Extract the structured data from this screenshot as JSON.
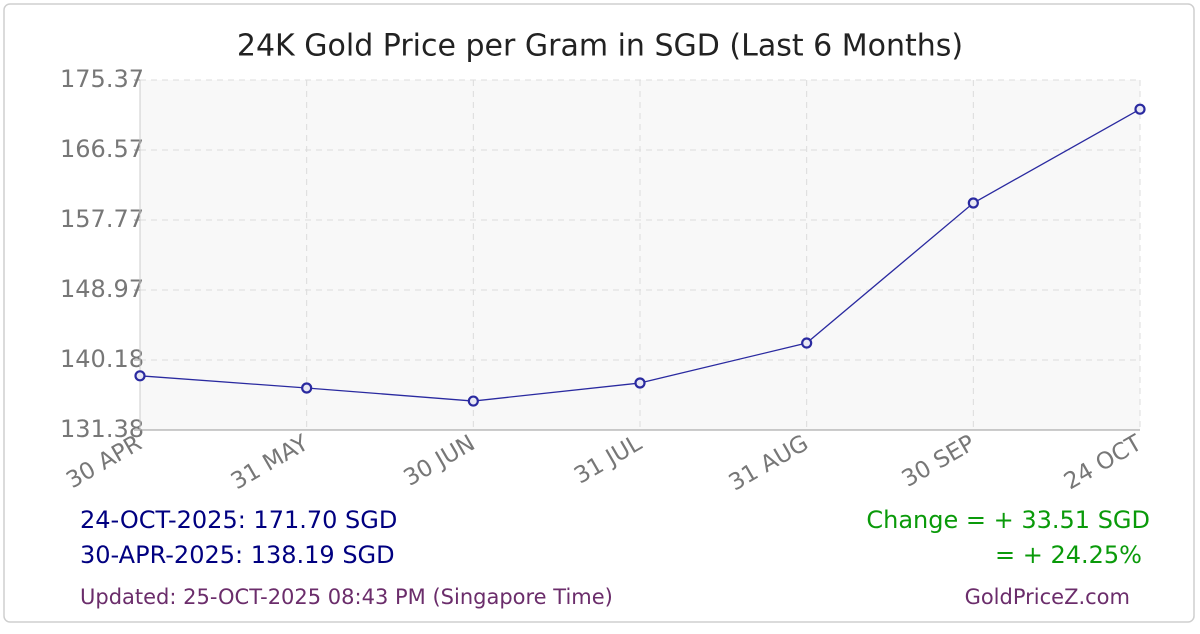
{
  "chart_data": {
    "type": "line",
    "title": "24K Gold Price per Gram in SGD (Last 6 Months)",
    "categories": [
      "30 APR",
      "31 MAY",
      "30 JUN",
      "31 JUL",
      "31 AUG",
      "30 SEP",
      "24 OCT"
    ],
    "series": [
      {
        "name": "24K Gold",
        "color": "#2a2aa0",
        "values": [
          138.19,
          136.66,
          135.02,
          137.29,
          142.31,
          159.91,
          171.7
        ]
      }
    ],
    "ylim": [
      131.38,
      175.37
    ],
    "yticks": [
      131.38,
      140.18,
      148.97,
      157.77,
      166.57,
      175.37
    ],
    "grid": true,
    "annotations": {
      "latest": "24-OCT-2025: 171.70 SGD",
      "earliest": "30-APR-2025: 138.19 SGD",
      "change": "Change = + 33.51 SGD",
      "change_pct": "= + 24.25%",
      "updated": "Updated: 25-OCT-2025 08:43 PM (Singapore Time)",
      "source": "GoldPriceZ.com"
    }
  }
}
